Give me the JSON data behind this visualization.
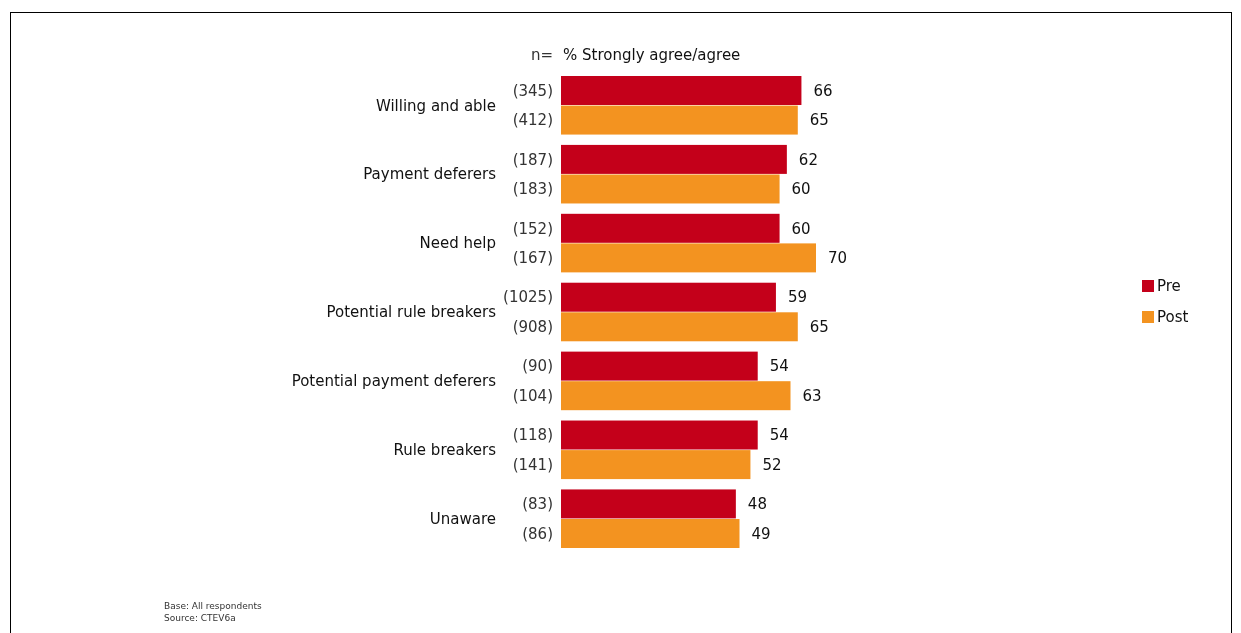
{
  "chart_data": {
    "type": "bar",
    "orientation": "horizontal",
    "title": "% Strongly agree/agree",
    "categories": [
      "Willing and able",
      "Payment deferers",
      "Need help",
      "Potential rule breakers",
      "Potential payment deferers",
      "Rule breakers",
      "Unaware"
    ],
    "series": [
      {
        "name": "Pre",
        "color": "#c4001a",
        "values": [
          66,
          62,
          60,
          59,
          54,
          54,
          48
        ]
      },
      {
        "name": "Post",
        "color": "#f39320",
        "values": [
          65,
          60,
          70,
          65,
          63,
          52,
          49
        ]
      }
    ],
    "data_labels": true,
    "legend": "right",
    "tick_labels": "y",
    "annotations": [
      "n=",
      "(345)",
      "(412)",
      "(187)",
      "(183)",
      "(152)",
      "(167)",
      "(1025)",
      "(908)",
      "(90)",
      "(104)",
      "(118)",
      "(141)",
      "(83)",
      "(86)",
      "Base: All respondents",
      "Source: CTEV6a"
    ]
  }
}
